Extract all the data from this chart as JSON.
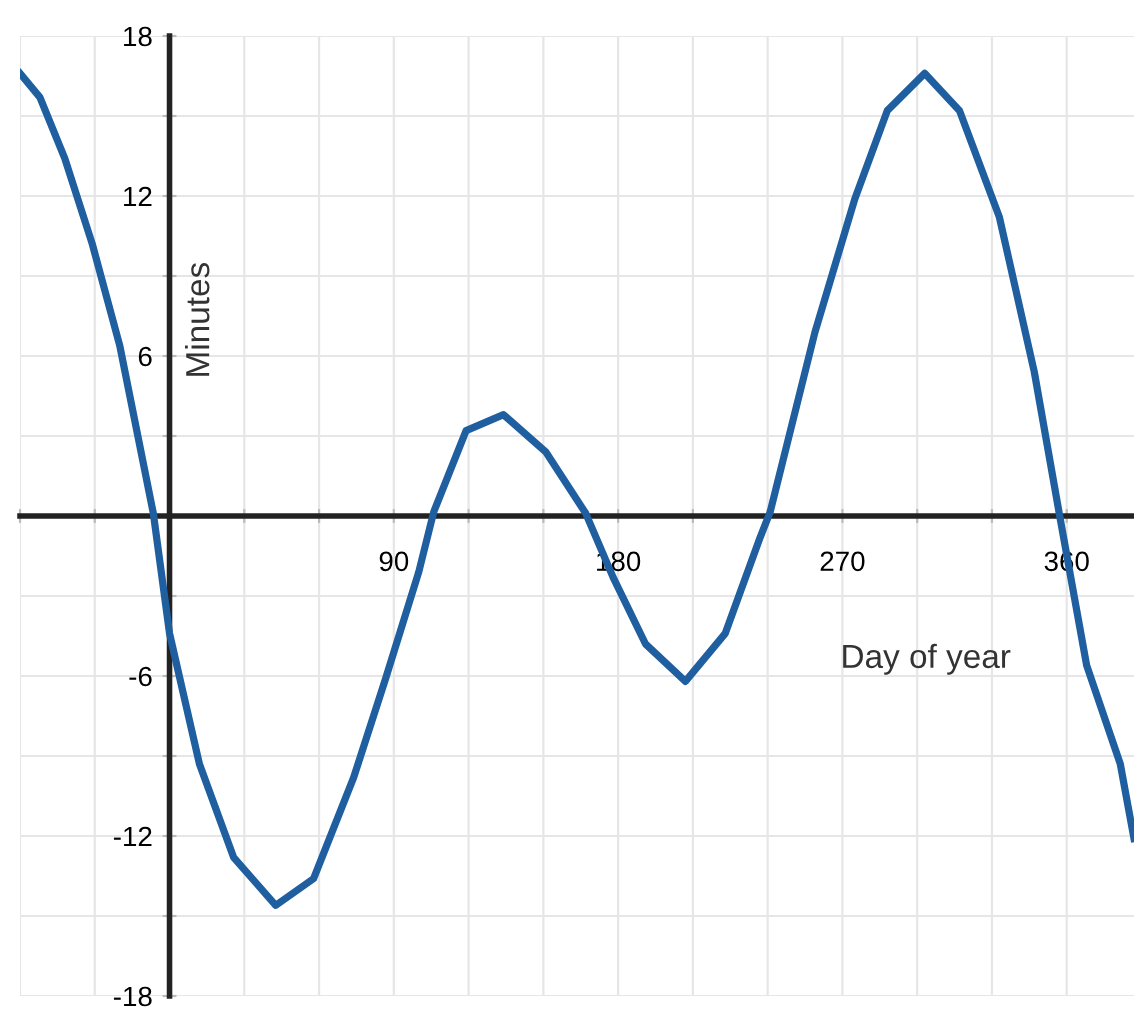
{
  "chart_data": {
    "type": "line",
    "xlabel": "Day of year",
    "ylabel": "Minutes",
    "series": [
      {
        "color": "#1f5fa0",
        "x": [
          -60,
          -52,
          -42,
          -31,
          -20,
          -6.5,
          0,
          12,
          25.7,
          42.6,
          57.8,
          73.9,
          86.7,
          100,
          106,
          119,
          134,
          151,
          167,
          178,
          191,
          207,
          223,
          237,
          241,
          259,
          275,
          288,
          303,
          317,
          333,
          347,
          357,
          368,
          381.5,
          387
        ],
        "values": [
          16.6,
          15.7,
          13.4,
          10.2,
          6.4,
          0.1,
          -4.4,
          -9.3,
          -12.8,
          -14.6,
          -13.6,
          -9.8,
          -6.1,
          -2.1,
          0.15,
          3.2,
          3.8,
          2.4,
          0.1,
          -2.3,
          -4.8,
          -6.2,
          -4.4,
          -0.8,
          0.15,
          6.9,
          11.9,
          15.2,
          16.6,
          15.2,
          11.2,
          5.4,
          0.1,
          -5.6,
          -9.3,
          -12.1
        ]
      }
    ],
    "xlim": [
      -60,
      387
    ],
    "ylim": [
      -18,
      18
    ],
    "xticks": [
      {
        "value": -60,
        "label": null
      },
      {
        "value": -30,
        "label": null
      },
      {
        "value": 30,
        "label": null
      },
      {
        "value": 60,
        "label": null
      },
      90,
      {
        "value": 120,
        "label": null
      },
      {
        "value": 150,
        "label": null
      },
      180,
      {
        "value": 210,
        "label": null
      },
      {
        "value": 240,
        "label": null
      },
      270,
      {
        "value": 300,
        "label": null
      },
      {
        "value": 330,
        "label": null
      },
      360
    ],
    "yticks": [
      -18,
      {
        "value": -15,
        "label": null
      },
      -12,
      {
        "value": -9,
        "label": null
      },
      -6,
      {
        "value": -3,
        "label": null
      },
      {
        "value": 3,
        "label": null
      },
      6,
      {
        "value": 9,
        "label": null
      },
      12,
      {
        "value": 15,
        "label": null
      },
      18
    ],
    "grid": true,
    "marker": "none",
    "line_style": "solid",
    "legend": false
  }
}
